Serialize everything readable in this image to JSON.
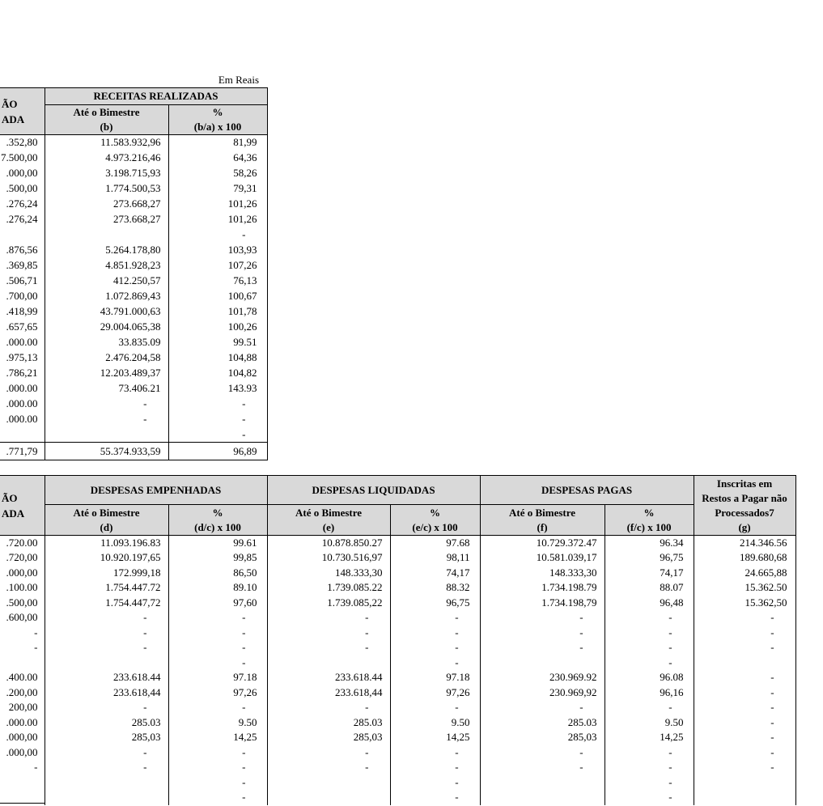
{
  "page": {
    "em_reais": "Em Reais"
  },
  "colors": {
    "header_bg": "#d9d9d9",
    "border": "#000000",
    "text": "#000000",
    "background": "#ffffff"
  },
  "receitas_table": {
    "col_a_header_line1": "ÃO",
    "col_a_header_line2": "ADA",
    "group_header": "RECEITAS REALIZADAS",
    "sub_b": {
      "line1": "Até o  Bimestre",
      "line2": "(b)"
    },
    "sub_pct": {
      "line1": "%",
      "line2": "(b/a) x 100"
    },
    "rows": [
      {
        "a": ".352,80",
        "b": "11.583.932,96",
        "pct": "81,99"
      },
      {
        "a": "7.500,00",
        "b": "4.973.216,46",
        "pct": "64,36"
      },
      {
        "a": ".000,00",
        "b": "3.198.715,93",
        "pct": "58,26"
      },
      {
        "a": ".500,00",
        "b": "1.774.500,53",
        "pct": "79,31"
      },
      {
        "a": ".276,24",
        "b": "273.668,27",
        "pct": "101,26"
      },
      {
        "a": ".276,24",
        "b": "273.668,27",
        "pct": "101,26"
      },
      {
        "a": "",
        "b": "",
        "pct": "-"
      },
      {
        "a": ".876,56",
        "b": "5.264.178,80",
        "pct": "103,93"
      },
      {
        "a": ".369,85",
        "b": "4.851.928,23",
        "pct": "107,26"
      },
      {
        "a": ".506,71",
        "b": "412.250,57",
        "pct": "76,13"
      },
      {
        "a": ".700,00",
        "b": "1.072.869,43",
        "pct": "100,67"
      },
      {
        "a": ".418,99",
        "b": "43.791.000,63",
        "pct": "101,78"
      },
      {
        "a": ".657,65",
        "b": "29.004.065,38",
        "pct": "100,26"
      },
      {
        "a": ".000.00",
        "b": "33.835.09",
        "pct": "99.51"
      },
      {
        "a": ".975,13",
        "b": "2.476.204,58",
        "pct": "104,88"
      },
      {
        "a": ".786,21",
        "b": "12.203.489,37",
        "pct": "104,82"
      },
      {
        "a": ".000.00",
        "b": "73.406.21",
        "pct": "143.93"
      },
      {
        "a": ".000.00",
        "b": "-",
        "pct": "-"
      },
      {
        "a": ".000.00",
        "b": "-",
        "pct": "-"
      },
      {
        "a": "",
        "b": "",
        "pct": "-"
      }
    ],
    "total_row": {
      "a": ".771,79",
      "b": "55.374.933,59",
      "pct": "96,89"
    }
  },
  "despesas_table": {
    "col_a_header_line1": "ÃO",
    "col_a_header_line2": "ADA",
    "group_empenhadas": "DESPESAS EMPENHADAS",
    "group_liquidadas": "DESPESAS LIQUIDADAS",
    "group_pagas": "DESPESAS PAGAS",
    "sub_d": {
      "line1": "Até o  Bimestre",
      "line2": "(d)"
    },
    "sub_dpct": {
      "line1": "%",
      "line2": "(d/c) x 100"
    },
    "sub_e": {
      "line1": "Até o  Bimestre",
      "line2": "(e)"
    },
    "sub_epct": {
      "line1": "%",
      "line2": "(e/c) x 100"
    },
    "sub_f": {
      "line1": "Até o  Bimestre",
      "line2": "(f)"
    },
    "sub_fpct": {
      "line1": "%",
      "line2": "(f/c) x 100"
    },
    "restos": {
      "line1": "Inscritas em",
      "line2": "Restos a Pagar não",
      "line3": "Processados7",
      "line4": "(g)"
    },
    "rows": [
      {
        "a": ".720.00",
        "d": "11.093.196.83",
        "dpct": "99.61",
        "e": "10.878.850.27",
        "epct": "97.68",
        "f": "10.729.372.47",
        "fpct": "96.34",
        "g": "214.346.56"
      },
      {
        "a": ".720,00",
        "d": "10.920.197,65",
        "dpct": "99,85",
        "e": "10.730.516,97",
        "epct": "98,11",
        "f": "10.581.039,17",
        "fpct": "96,75",
        "g": "189.680,68"
      },
      {
        "a": ".000,00",
        "d": "172.999,18",
        "dpct": "86,50",
        "e": "148.333,30",
        "epct": "74,17",
        "f": "148.333,30",
        "fpct": "74,17",
        "g": "24.665,88"
      },
      {
        "a": ".100.00",
        "d": "1.754.447.72",
        "dpct": "89.10",
        "e": "1.739.085.22",
        "epct": "88.32",
        "f": "1.734.198.79",
        "fpct": "88.07",
        "g": "15.362.50"
      },
      {
        "a": ".500,00",
        "d": "1.754.447,72",
        "dpct": "97,60",
        "e": "1.739.085,22",
        "epct": "96,75",
        "f": "1.734.198,79",
        "fpct": "96,48",
        "g": "15.362,50"
      },
      {
        "a": ".600,00",
        "d": "-",
        "dpct": "-",
        "e": "-",
        "epct": "-",
        "f": "-",
        "fpct": "-",
        "g": "-"
      },
      {
        "a": "-",
        "d": "-",
        "dpct": "-",
        "e": "-",
        "epct": "-",
        "f": "-",
        "fpct": "-",
        "g": "-"
      },
      {
        "a": "-",
        "d": "-",
        "dpct": "-",
        "e": "-",
        "epct": "-",
        "f": "-",
        "fpct": "-",
        "g": "-"
      },
      {
        "a": "",
        "d": "",
        "dpct": "-",
        "e": "",
        "epct": "-",
        "f": "",
        "fpct": "-",
        "g": ""
      },
      {
        "a": ".400.00",
        "d": "233.618.44",
        "dpct": "97.18",
        "e": "233.618.44",
        "epct": "97.18",
        "f": "230.969.92",
        "fpct": "96.08",
        "g": "-"
      },
      {
        "a": ".200,00",
        "d": "233.618,44",
        "dpct": "97,26",
        "e": "233.618,44",
        "epct": "97,26",
        "f": "230.969,92",
        "fpct": "96,16",
        "g": "-"
      },
      {
        "a": "200,00",
        "d": "-",
        "dpct": "-",
        "e": "-",
        "epct": "-",
        "f": "-",
        "fpct": "-",
        "g": "-"
      },
      {
        "a": ".000.00",
        "d": "285.03",
        "dpct": "9.50",
        "e": "285.03",
        "epct": "9.50",
        "f": "285.03",
        "fpct": "9.50",
        "g": "-"
      },
      {
        "a": ".000,00",
        "d": "285,03",
        "dpct": "14,25",
        "e": "285,03",
        "epct": "14,25",
        "f": "285,03",
        "fpct": "14,25",
        "g": "-"
      },
      {
        "a": ".000,00",
        "d": "-",
        "dpct": "-",
        "e": "-",
        "epct": "-",
        "f": "-",
        "fpct": "-",
        "g": "-"
      },
      {
        "a": "-",
        "d": "-",
        "dpct": "-",
        "e": "-",
        "epct": "-",
        "f": "-",
        "fpct": "-",
        "g": "-"
      },
      {
        "a": "",
        "d": "",
        "dpct": "-",
        "e": "",
        "epct": "-",
        "f": "",
        "fpct": "-",
        "g": ""
      },
      {
        "a": "",
        "d": "",
        "dpct": "-",
        "e": "",
        "epct": "-",
        "f": "",
        "fpct": "-",
        "g": ""
      }
    ]
  }
}
